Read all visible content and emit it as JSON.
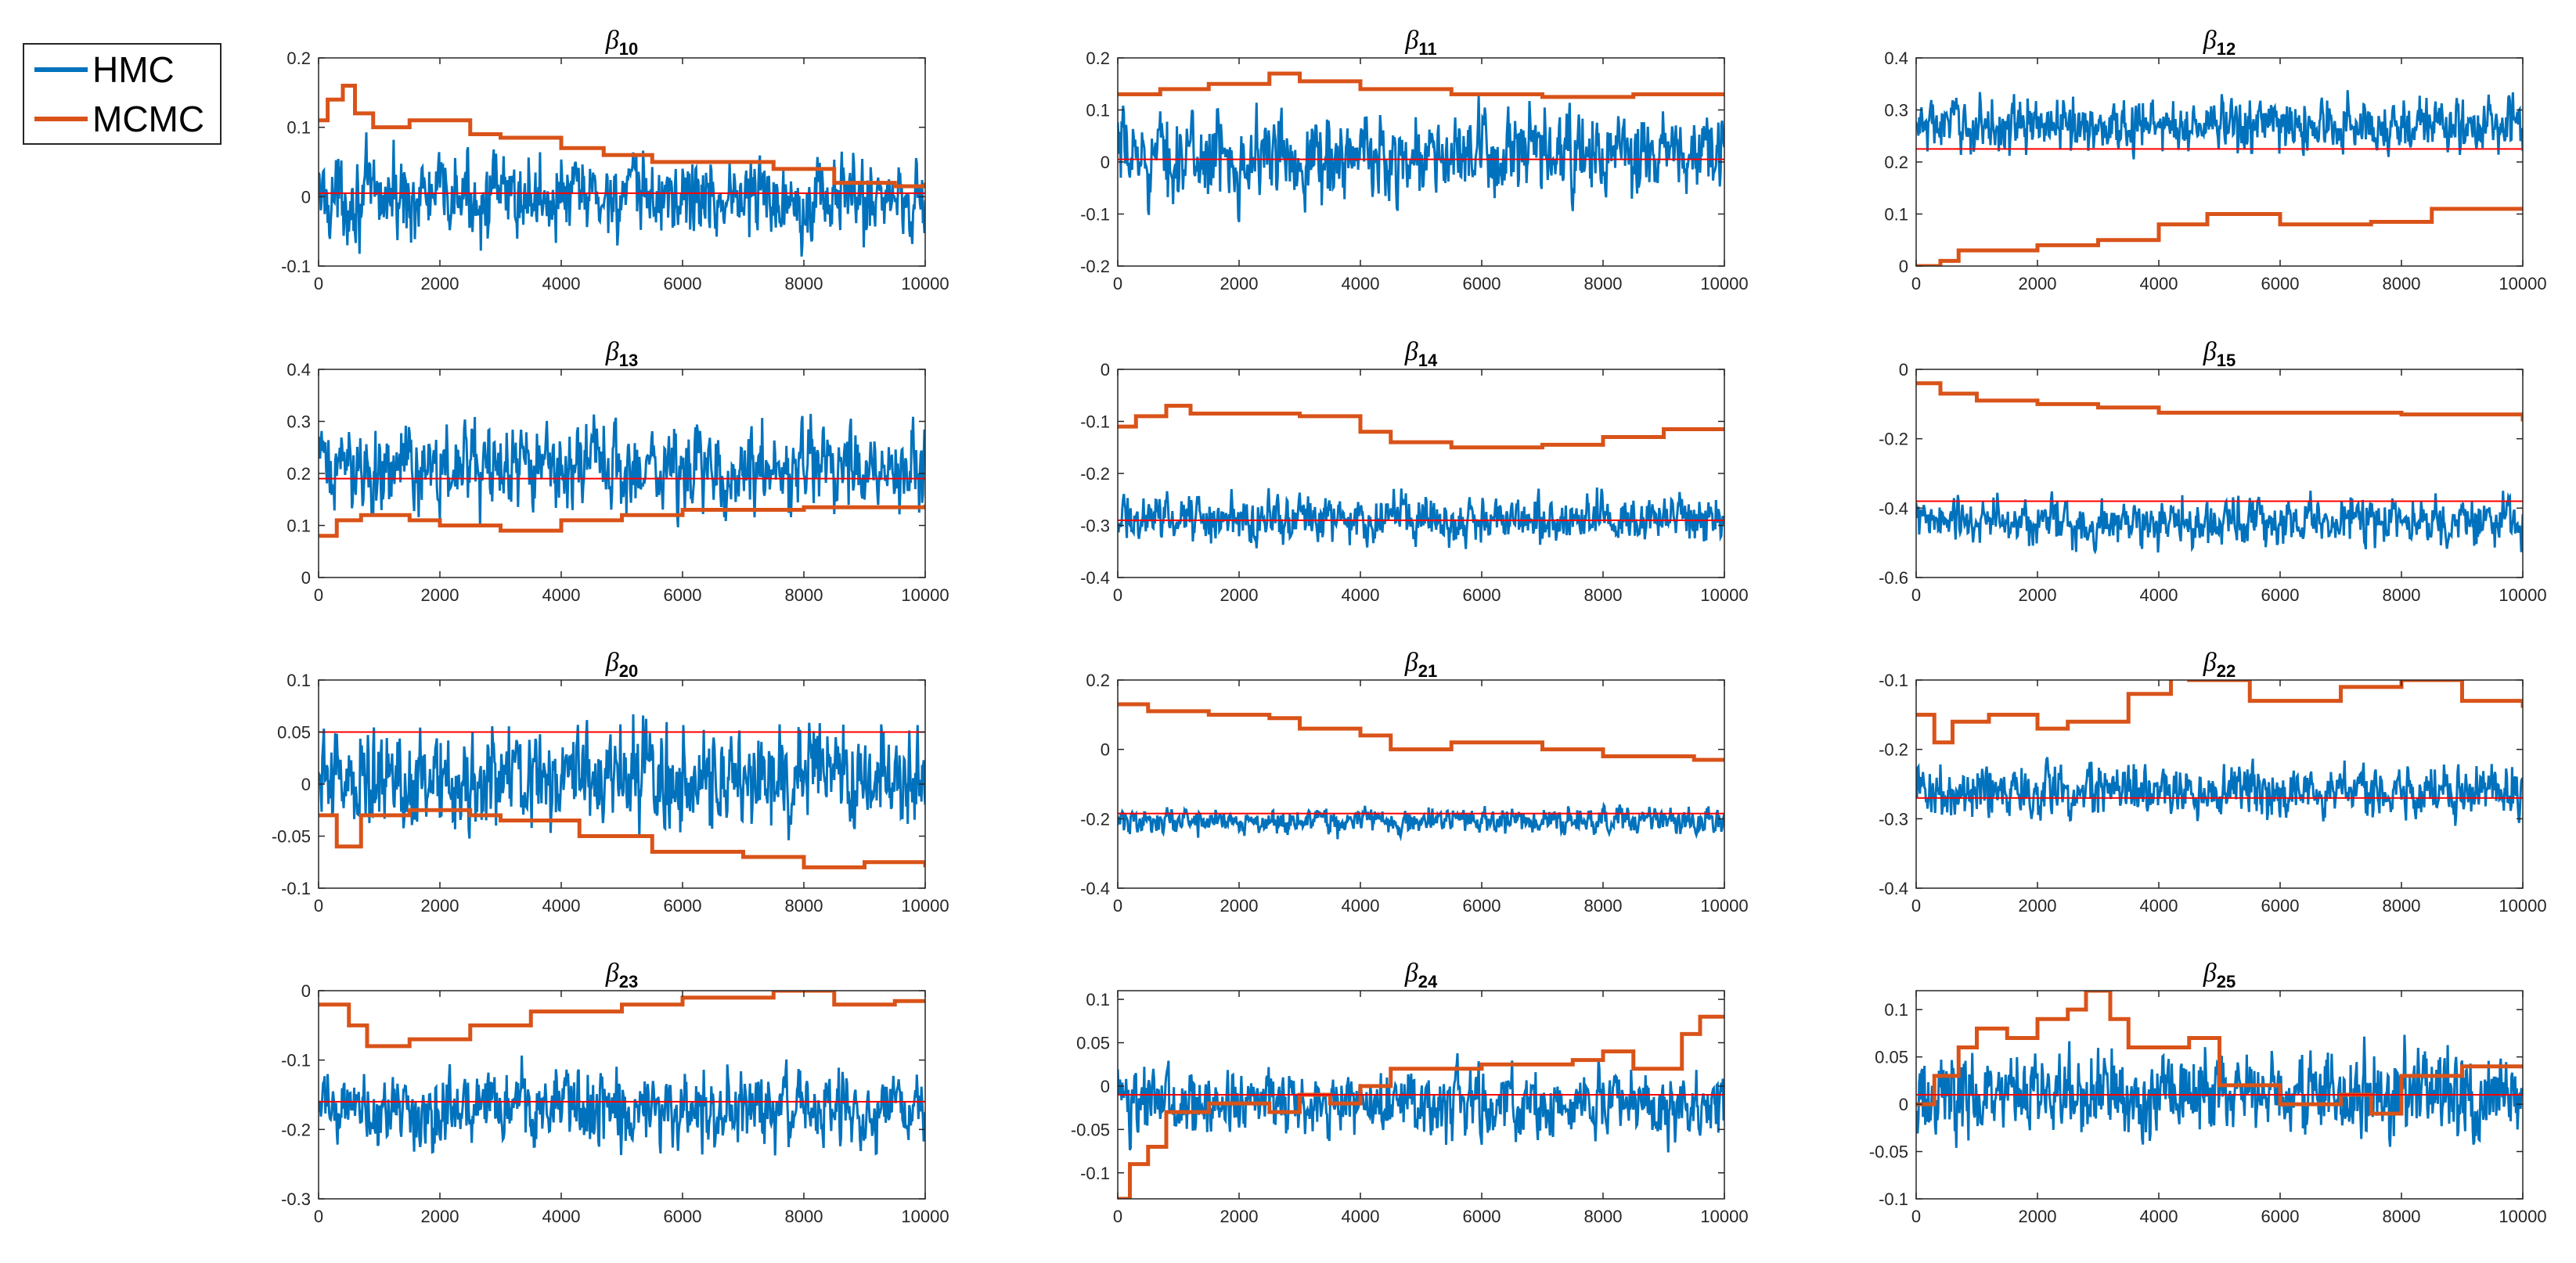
{
  "legend": {
    "items": [
      {
        "label": "HMC",
        "color": "#0072BD"
      },
      {
        "label": "MCMC",
        "color": "#D95319"
      }
    ]
  },
  "chart_data": [
    {
      "type": "line",
      "title": "β10",
      "symbol": "β",
      "subscript": "10",
      "xlim": [
        0,
        10000
      ],
      "ylim": [
        -0.1,
        0.2
      ],
      "xticks": [
        "0",
        "2000",
        "4000",
        "6000",
        "8000",
        "10000"
      ],
      "yticks": [
        "-0.1",
        "0",
        "0.1",
        "0.2"
      ],
      "series": [
        {
          "name": "HMC",
          "mean": 0.0,
          "spread": 0.04
        },
        {
          "name": "MCMC",
          "steps": [
            [
              0,
              0.11
            ],
            [
              150,
              0.14
            ],
            [
              400,
              0.16
            ],
            [
              600,
              0.12
            ],
            [
              900,
              0.1
            ],
            [
              1500,
              0.11
            ],
            [
              2500,
              0.09
            ],
            [
              3000,
              0.085
            ],
            [
              4000,
              0.07
            ],
            [
              4700,
              0.06
            ],
            [
              5500,
              0.05
            ],
            [
              6500,
              0.05
            ],
            [
              7500,
              0.04
            ],
            [
              8500,
              0.02
            ],
            [
              9500,
              0.015
            ],
            [
              10000,
              0.02
            ]
          ]
        },
        {
          "name": "reference",
          "value": 0.005
        }
      ]
    },
    {
      "type": "line",
      "title": "β11",
      "symbol": "β",
      "subscript": "11",
      "xlim": [
        0,
        10000
      ],
      "ylim": [
        -0.2,
        0.2
      ],
      "xticks": [
        "0",
        "2000",
        "4000",
        "6000",
        "8000",
        "10000"
      ],
      "yticks": [
        "-0.2",
        "-0.1",
        "0",
        "0.1",
        "0.2"
      ],
      "series": [
        {
          "name": "HMC",
          "mean": 0.01,
          "spread": 0.055
        },
        {
          "name": "MCMC",
          "steps": [
            [
              0,
              0.13
            ],
            [
              700,
              0.14
            ],
            [
              1500,
              0.15
            ],
            [
              2500,
              0.17
            ],
            [
              3000,
              0.155
            ],
            [
              4000,
              0.14
            ],
            [
              5500,
              0.13
            ],
            [
              7000,
              0.125
            ],
            [
              8500,
              0.13
            ],
            [
              10000,
              0.13
            ]
          ]
        },
        {
          "name": "reference",
          "value": 0.005
        }
      ]
    },
    {
      "type": "line",
      "title": "β12",
      "symbol": "β",
      "subscript": "12",
      "xlim": [
        0,
        10000
      ],
      "ylim": [
        0,
        0.4
      ],
      "xticks": [
        "0",
        "2000",
        "4000",
        "6000",
        "8000",
        "10000"
      ],
      "yticks": [
        "0",
        "0.1",
        "0.2",
        "0.3",
        "0.4"
      ],
      "series": [
        {
          "name": "HMC",
          "mean": 0.27,
          "spread": 0.035
        },
        {
          "name": "MCMC",
          "steps": [
            [
              0,
              0.0
            ],
            [
              400,
              0.01
            ],
            [
              700,
              0.03
            ],
            [
              2000,
              0.04
            ],
            [
              3000,
              0.05
            ],
            [
              4000,
              0.08
            ],
            [
              4800,
              0.1
            ],
            [
              6000,
              0.08
            ],
            [
              7500,
              0.085
            ],
            [
              8500,
              0.11
            ],
            [
              10000,
              0.11
            ]
          ]
        },
        {
          "name": "reference",
          "value": 0.225
        }
      ]
    },
    {
      "type": "line",
      "title": "β13",
      "symbol": "β",
      "subscript": "13",
      "xlim": [
        0,
        10000
      ],
      "ylim": [
        0,
        0.4
      ],
      "xticks": [
        "0",
        "2000",
        "4000",
        "6000",
        "8000",
        "10000"
      ],
      "yticks": [
        "0",
        "0.1",
        "0.2",
        "0.3",
        "0.4"
      ],
      "series": [
        {
          "name": "HMC",
          "mean": 0.21,
          "spread": 0.055
        },
        {
          "name": "MCMC",
          "steps": [
            [
              0,
              0.08
            ],
            [
              300,
              0.11
            ],
            [
              700,
              0.12
            ],
            [
              1500,
              0.11
            ],
            [
              2000,
              0.1
            ],
            [
              3000,
              0.09
            ],
            [
              4000,
              0.11
            ],
            [
              5000,
              0.12
            ],
            [
              6000,
              0.13
            ],
            [
              8000,
              0.135
            ],
            [
              10000,
              0.14
            ]
          ]
        },
        {
          "name": "reference",
          "value": 0.19
        }
      ]
    },
    {
      "type": "line",
      "title": "β14",
      "symbol": "β",
      "subscript": "14",
      "xlim": [
        0,
        10000
      ],
      "ylim": [
        -0.4,
        0
      ],
      "xticks": [
        "0",
        "2000",
        "4000",
        "6000",
        "8000",
        "10000"
      ],
      "yticks": [
        "-0.4",
        "-0.3",
        "-0.2",
        "-0.1",
        "0"
      ],
      "series": [
        {
          "name": "HMC",
          "mean": -0.285,
          "spread": 0.03
        },
        {
          "name": "MCMC",
          "steps": [
            [
              0,
              -0.11
            ],
            [
              300,
              -0.09
            ],
            [
              800,
              -0.07
            ],
            [
              1200,
              -0.085
            ],
            [
              3000,
              -0.09
            ],
            [
              4000,
              -0.12
            ],
            [
              4500,
              -0.14
            ],
            [
              5500,
              -0.15
            ],
            [
              7000,
              -0.145
            ],
            [
              8000,
              -0.13
            ],
            [
              9000,
              -0.115
            ],
            [
              10000,
              -0.115
            ]
          ]
        },
        {
          "name": "reference",
          "value": -0.29
        }
      ]
    },
    {
      "type": "line",
      "title": "β15",
      "symbol": "β",
      "subscript": "15",
      "xlim": [
        0,
        10000
      ],
      "ylim": [
        -0.6,
        0
      ],
      "xticks": [
        "0",
        "2000",
        "4000",
        "6000",
        "8000",
        "10000"
      ],
      "yticks": [
        "-0.6",
        "-0.4",
        "-0.2",
        "0"
      ],
      "series": [
        {
          "name": "HMC",
          "mean": -0.44,
          "spread": 0.045
        },
        {
          "name": "MCMC",
          "steps": [
            [
              0,
              -0.04
            ],
            [
              400,
              -0.07
            ],
            [
              1000,
              -0.09
            ],
            [
              2000,
              -0.1
            ],
            [
              3000,
              -0.11
            ],
            [
              4000,
              -0.125
            ],
            [
              6000,
              -0.125
            ],
            [
              8000,
              -0.13
            ],
            [
              10000,
              -0.15
            ]
          ]
        },
        {
          "name": "reference",
          "value": -0.38
        }
      ]
    },
    {
      "type": "line",
      "title": "β20",
      "symbol": "β",
      "subscript": "20",
      "xlim": [
        0,
        10000
      ],
      "ylim": [
        -0.1,
        0.1
      ],
      "xticks": [
        "0",
        "2000",
        "4000",
        "6000",
        "8000",
        "10000"
      ],
      "yticks": [
        "-0.1",
        "-0.05",
        "0",
        "0.05",
        "0.1"
      ],
      "series": [
        {
          "name": "HMC",
          "mean": 0.005,
          "spread": 0.032
        },
        {
          "name": "MCMC",
          "steps": [
            [
              0,
              -0.03
            ],
            [
              300,
              -0.06
            ],
            [
              700,
              -0.03
            ],
            [
              1500,
              -0.025
            ],
            [
              2500,
              -0.03
            ],
            [
              3000,
              -0.035
            ],
            [
              4300,
              -0.05
            ],
            [
              5500,
              -0.065
            ],
            [
              7000,
              -0.07
            ],
            [
              8000,
              -0.08
            ],
            [
              9000,
              -0.075
            ],
            [
              10000,
              -0.08
            ]
          ]
        },
        {
          "name": "reference",
          "value": 0.05
        }
      ]
    },
    {
      "type": "line",
      "title": "β21",
      "symbol": "β",
      "subscript": "21",
      "xlim": [
        0,
        10000
      ],
      "ylim": [
        -0.4,
        0.2
      ],
      "xticks": [
        "0",
        "2000",
        "4000",
        "6000",
        "8000",
        "10000"
      ],
      "yticks": [
        "-0.4",
        "-0.2",
        "0",
        "0.2"
      ],
      "series": [
        {
          "name": "HMC",
          "mean": -0.205,
          "spread": 0.025
        },
        {
          "name": "MCMC",
          "steps": [
            [
              0,
              0.13
            ],
            [
              500,
              0.11
            ],
            [
              1500,
              0.1
            ],
            [
              2500,
              0.09
            ],
            [
              3000,
              0.06
            ],
            [
              4000,
              0.04
            ],
            [
              4500,
              0.0
            ],
            [
              5500,
              0.02
            ],
            [
              7000,
              0.0
            ],
            [
              8000,
              -0.02
            ],
            [
              9500,
              -0.03
            ],
            [
              10000,
              -0.03
            ]
          ]
        },
        {
          "name": "reference",
          "value": -0.185
        }
      ]
    },
    {
      "type": "line",
      "title": "β22",
      "symbol": "β",
      "subscript": "22",
      "xlim": [
        0,
        10000
      ],
      "ylim": [
        -0.4,
        -0.1
      ],
      "xticks": [
        "0",
        "2000",
        "4000",
        "6000",
        "8000",
        "10000"
      ],
      "yticks": [
        "-0.4",
        "-0.3",
        "-0.2",
        "-0.1"
      ],
      "series": [
        {
          "name": "HMC",
          "mean": -0.26,
          "spread": 0.025
        },
        {
          "name": "MCMC",
          "steps": [
            [
              0,
              -0.15
            ],
            [
              300,
              -0.19
            ],
            [
              600,
              -0.16
            ],
            [
              1200,
              -0.15
            ],
            [
              2000,
              -0.17
            ],
            [
              2500,
              -0.16
            ],
            [
              3500,
              -0.12
            ],
            [
              4200,
              -0.09
            ],
            [
              4500,
              -0.1
            ],
            [
              5500,
              -0.13
            ],
            [
              7000,
              -0.11
            ],
            [
              8000,
              -0.1
            ],
            [
              9000,
              -0.13
            ],
            [
              10000,
              -0.14
            ]
          ]
        },
        {
          "name": "reference",
          "value": -0.27
        }
      ]
    },
    {
      "type": "line",
      "title": "β23",
      "symbol": "β",
      "subscript": "23",
      "xlim": [
        0,
        10000
      ],
      "ylim": [
        -0.3,
        0
      ],
      "xticks": [
        "0",
        "2000",
        "4000",
        "6000",
        "8000",
        "10000"
      ],
      "yticks": [
        "-0.3",
        "-0.2",
        "-0.1",
        "0"
      ],
      "series": [
        {
          "name": "HMC",
          "mean": -0.17,
          "spread": 0.035
        },
        {
          "name": "MCMC",
          "steps": [
            [
              0,
              -0.02
            ],
            [
              500,
              -0.05
            ],
            [
              800,
              -0.08
            ],
            [
              1500,
              -0.07
            ],
            [
              2500,
              -0.05
            ],
            [
              3500,
              -0.03
            ],
            [
              5000,
              -0.02
            ],
            [
              6000,
              -0.01
            ],
            [
              7500,
              0.0
            ],
            [
              8500,
              -0.02
            ],
            [
              9500,
              -0.015
            ],
            [
              10000,
              -0.015
            ]
          ]
        },
        {
          "name": "reference",
          "value": -0.16
        }
      ]
    },
    {
      "type": "line",
      "title": "β24",
      "symbol": "β",
      "subscript": "24",
      "xlim": [
        0,
        10000
      ],
      "ylim": [
        -0.13,
        0.11
      ],
      "xticks": [
        "0",
        "2000",
        "4000",
        "6000",
        "8000",
        "10000"
      ],
      "yticks": [
        "-0.1",
        "-0.05",
        "0",
        "0.05",
        "0.1"
      ],
      "series": [
        {
          "name": "HMC",
          "mean": -0.02,
          "spread": 0.025
        },
        {
          "name": "MCMC",
          "steps": [
            [
              0,
              -0.13
            ],
            [
              200,
              -0.09
            ],
            [
              500,
              -0.07
            ],
            [
              800,
              -0.03
            ],
            [
              1500,
              -0.02
            ],
            [
              2500,
              -0.03
            ],
            [
              3000,
              -0.01
            ],
            [
              3500,
              -0.02
            ],
            [
              4000,
              0.0
            ],
            [
              4500,
              0.02
            ],
            [
              6000,
              0.025
            ],
            [
              7500,
              0.03
            ],
            [
              8000,
              0.04
            ],
            [
              8500,
              0.02
            ],
            [
              9300,
              0.06
            ],
            [
              9600,
              0.08
            ],
            [
              10000,
              0.08
            ]
          ]
        },
        {
          "name": "reference",
          "value": -0.01
        }
      ]
    },
    {
      "type": "line",
      "title": "β25",
      "symbol": "β",
      "subscript": "25",
      "xlim": [
        0,
        10000
      ],
      "ylim": [
        -0.1,
        0.12
      ],
      "xticks": [
        "0",
        "2000",
        "4000",
        "6000",
        "8000",
        "10000"
      ],
      "yticks": [
        "-0.1",
        "-0.05",
        "0",
        "0.05",
        "0.1"
      ],
      "series": [
        {
          "name": "HMC",
          "mean": 0.01,
          "spread": 0.03
        },
        {
          "name": "MCMC",
          "steps": [
            [
              0,
              0.0
            ],
            [
              300,
              0.03
            ],
            [
              700,
              0.06
            ],
            [
              1000,
              0.08
            ],
            [
              1500,
              0.07
            ],
            [
              2000,
              0.09
            ],
            [
              2500,
              0.1
            ],
            [
              2800,
              0.12
            ],
            [
              3200,
              0.09
            ],
            [
              3500,
              0.06
            ],
            [
              4500,
              0.07
            ],
            [
              5000,
              0.02
            ],
            [
              6000,
              0.0
            ],
            [
              7000,
              0.01
            ],
            [
              7500,
              -0.01
            ],
            [
              8000,
              0.03
            ],
            [
              9000,
              0.04
            ],
            [
              10000,
              0.04
            ]
          ]
        },
        {
          "name": "reference",
          "value": 0.01
        }
      ]
    }
  ]
}
